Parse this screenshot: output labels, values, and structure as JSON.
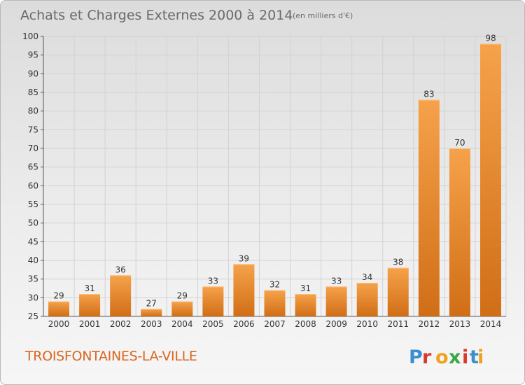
{
  "title": "Achats et Charges Externes 2000 à 2014",
  "unit_label": "(en milliers d'€)",
  "place_name": "TROISFONTAINES-LA-VILLE",
  "logo_text": "Proxiti",
  "colors": {
    "bar_top": "#f6a24b",
    "bar_bottom": "#d06e16",
    "accent": "#d9661f"
  },
  "chart_data": {
    "type": "bar",
    "title": "Achats et Charges Externes 2000 à 2014",
    "subtitle": "(en milliers d'€)",
    "xlabel": "",
    "ylabel": "",
    "categories": [
      "2000",
      "2001",
      "2002",
      "2003",
      "2004",
      "2005",
      "2006",
      "2007",
      "2008",
      "2009",
      "2010",
      "2011",
      "2012",
      "2013",
      "2014"
    ],
    "values": [
      29,
      31,
      36,
      27,
      29,
      33,
      39,
      32,
      31,
      33,
      34,
      38,
      83,
      70,
      98
    ],
    "ylim": [
      25,
      100
    ],
    "yticks": [
      25,
      30,
      35,
      40,
      45,
      50,
      55,
      60,
      65,
      70,
      75,
      80,
      85,
      90,
      95,
      100
    ],
    "grid": true,
    "legend": "none"
  }
}
